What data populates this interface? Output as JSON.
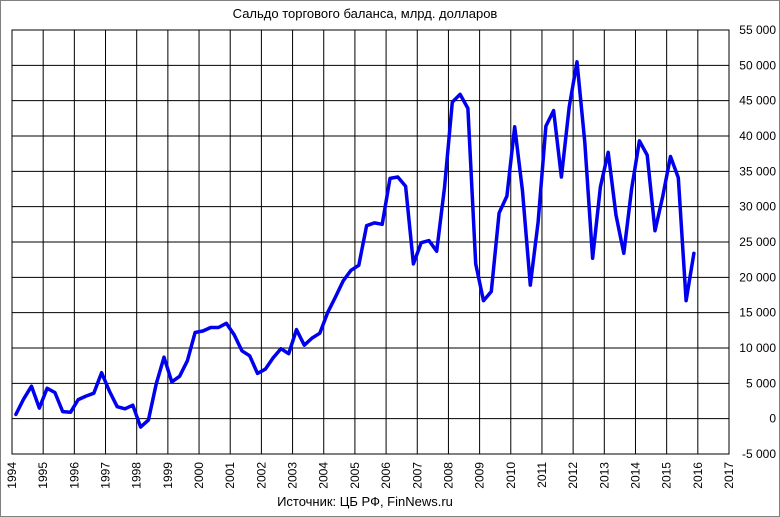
{
  "chart_data": {
    "type": "line",
    "title": "Сальдо торгового баланса, млрд. долларов",
    "source": "Источник: ЦБ РФ, FinNews.ru",
    "xlabel": "",
    "ylabel": "",
    "xlim": [
      1994,
      2017
    ],
    "ylim": [
      -5000,
      55000
    ],
    "x_ticks": [
      "1994",
      "1995",
      "1996",
      "1997",
      "1998",
      "1999",
      "2000",
      "2001",
      "2002",
      "2003",
      "2004",
      "2005",
      "2006",
      "2007",
      "2008",
      "2009",
      "2010",
      "2011",
      "2012",
      "2013",
      "2014",
      "2015",
      "2016",
      "2017"
    ],
    "y_ticks": [
      "-5 000",
      "0",
      "5 000",
      "10 000",
      "15 000",
      "20 000",
      "25 000",
      "30 000",
      "35 000",
      "40 000",
      "45 000",
      "50 000",
      "55 000"
    ],
    "y_tick_values": [
      -5000,
      0,
      5000,
      10000,
      15000,
      20000,
      25000,
      30000,
      35000,
      40000,
      45000,
      50000,
      55000
    ],
    "grid": true,
    "line_color": "#0000ee",
    "series": [
      {
        "x": [
          1994.125,
          1994.375,
          1994.625,
          1994.875,
          1995.125,
          1995.375,
          1995.625,
          1995.875,
          1996.125,
          1996.375,
          1996.625,
          1996.875,
          1997.125,
          1997.375,
          1997.625,
          1997.875,
          1998.125,
          1998.375,
          1998.625,
          1998.875,
          1999.125,
          1999.375,
          1999.625,
          1999.875,
          2000.125,
          2000.375,
          2000.625,
          2000.875,
          2001.125,
          2001.375,
          2001.625,
          2001.875,
          2002.125,
          2002.375,
          2002.625,
          2002.875,
          2003.125,
          2003.375,
          2003.625,
          2003.875,
          2004.125,
          2004.375,
          2004.625,
          2004.875,
          2005.125,
          2005.375,
          2005.625,
          2005.875,
          2006.125,
          2006.375,
          2006.625,
          2006.875,
          2007.125,
          2007.375,
          2007.625,
          2007.875,
          2008.125,
          2008.375,
          2008.625,
          2008.875,
          2009.125,
          2009.375,
          2009.625,
          2009.875,
          2010.125,
          2010.375,
          2010.625,
          2010.875,
          2011.125,
          2011.375,
          2011.625,
          2011.875,
          2012.125,
          2012.375,
          2012.625,
          2012.875,
          2013.125,
          2013.375,
          2013.625,
          2013.875,
          2014.125,
          2014.375,
          2014.625,
          2014.875,
          2015.125,
          2015.375,
          2015.625,
          2015.875
        ],
        "values": [
          600,
          2800,
          4600,
          1500,
          4300,
          3700,
          1000,
          900,
          2700,
          3200,
          3600,
          6500,
          3900,
          1700,
          1400,
          1900,
          -1200,
          -200,
          4900,
          8700,
          5200,
          6000,
          8200,
          12200,
          12400,
          12900,
          12900,
          13500,
          11900,
          9600,
          8900,
          6400,
          7000,
          8600,
          9900,
          9200,
          12600,
          10400,
          11400,
          12100,
          15000,
          17200,
          19500,
          21000,
          21700,
          27300,
          27700,
          27500,
          34000,
          34200,
          32900,
          21900,
          24900,
          25200,
          23700,
          32700,
          44800,
          45900,
          43900,
          21900,
          16700,
          18000,
          29100,
          31500,
          41300,
          32200,
          18900,
          27800,
          41400,
          43600,
          34200,
          44100,
          50500,
          39100,
          22700,
          32800,
          37700,
          28800,
          23400,
          32500,
          39300,
          37300,
          26600,
          31500,
          37100,
          34100,
          16700,
          23400
        ]
      }
    ]
  }
}
